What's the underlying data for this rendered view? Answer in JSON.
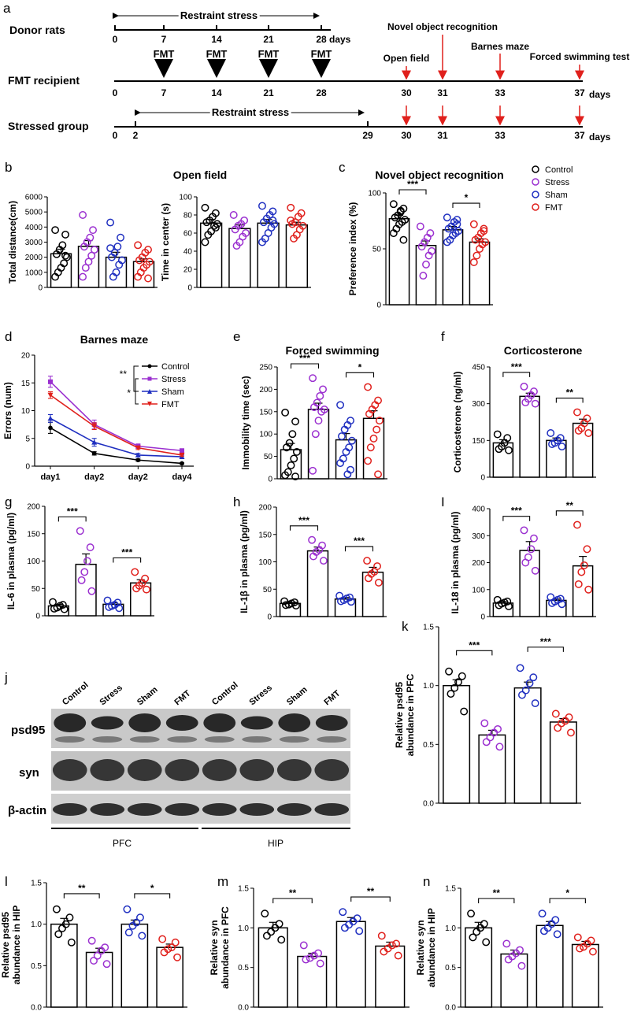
{
  "colors": {
    "control": "#000000",
    "stress": "#9b30d0",
    "sham": "#1f2fc0",
    "fmt": "#e0201c",
    "arrow_red": "#e0201c",
    "blot_bg": "#c9c9c9",
    "blot_band": "#1a1a1a"
  },
  "panel_a": {
    "letter": "a",
    "donor": {
      "label": "Donor rats",
      "ticks": [
        "0",
        "7",
        "14",
        "21",
        "28"
      ],
      "unit": "days",
      "stress_label": "Restraint stress"
    },
    "recipient": {
      "label": "FMT recipient",
      "fmt_labels": [
        "FMT",
        "FMT",
        "FMT",
        "FMT"
      ],
      "ticks": [
        "0",
        "7",
        "14",
        "21",
        "28",
        "30",
        "31",
        "33",
        "37"
      ],
      "unit": "days"
    },
    "stressed": {
      "label": "Stressed group",
      "stress_label": "Restraint stress",
      "ticks": [
        "0",
        "2",
        "29",
        "30",
        "31",
        "33",
        "37"
      ],
      "unit": "days"
    },
    "tests": [
      "Open field",
      "Novel object recognition",
      "Barnes maze",
      "Forced swimming test"
    ]
  },
  "legend": {
    "groups": [
      "Control",
      "Stress",
      "Sham",
      "FMT"
    ]
  },
  "barnes_legend": {
    "groups": [
      "Control",
      "Stress",
      "Sham",
      "FMT"
    ],
    "sig": [
      "**",
      "*"
    ]
  },
  "chart_data": [
    {
      "id": "b1",
      "letter": "b",
      "type": "bar",
      "title": "",
      "ylabel": "Total distance(cm)",
      "categories": [
        "Control",
        "Stress",
        "Sham",
        "FMT"
      ],
      "values": [
        2230,
        2720,
        2000,
        1710
      ],
      "sem": [
        300,
        380,
        330,
        180
      ],
      "ylim": [
        0,
        6000
      ],
      "yticks": [
        0,
        1000,
        2000,
        3000,
        4000,
        5000,
        6000
      ],
      "sig": [],
      "points": [
        [
          3800,
          3500,
          2800,
          2500,
          2200,
          2000,
          1600,
          1300,
          1000,
          700,
          2100
        ],
        [
          4800,
          3800,
          3300,
          3000,
          2700,
          2500,
          2100,
          1700,
          1300,
          700
        ],
        [
          4300,
          3300,
          2700,
          2300,
          2000,
          1800,
          1500,
          1000,
          700,
          2600
        ],
        [
          2800,
          2500,
          2300,
          2000,
          1800,
          1700,
          1500,
          1300,
          1000,
          700,
          600
        ]
      ]
    },
    {
      "id": "b2",
      "letter": "",
      "type": "bar",
      "title": "",
      "ylabel": "Time in center (s)",
      "categories": [
        "Control",
        "Stress",
        "Sham",
        "FMT"
      ],
      "values": [
        71,
        65,
        71,
        69
      ],
      "sem": [
        4,
        4,
        4,
        3
      ],
      "ylim": [
        0,
        100
      ],
      "yticks": [
        0,
        20,
        40,
        60,
        80,
        100
      ],
      "sig": [],
      "points": [
        [
          88,
          82,
          78,
          74,
          72,
          70,
          68,
          62,
          58,
          50,
          66
        ],
        [
          80,
          74,
          70,
          68,
          64,
          60,
          56,
          50,
          46
        ],
        [
          90,
          84,
          80,
          76,
          72,
          70,
          66,
          60,
          54,
          50,
          74
        ],
        [
          88,
          82,
          78,
          72,
          70,
          68,
          64,
          58,
          54,
          74
        ]
      ]
    },
    {
      "id": "c",
      "letter": "c",
      "type": "bar",
      "title": "Novel object recognition",
      "ylabel": "Preference index (%)",
      "categories": [
        "Control",
        "Stress",
        "Sham",
        "FMT"
      ],
      "values": [
        77,
        53,
        67,
        56
      ],
      "sem": [
        3,
        4,
        3,
        3
      ],
      "ylim": [
        0,
        100
      ],
      "yticks": [
        0,
        50,
        100
      ],
      "sig": [
        [
          0,
          1,
          "***"
        ],
        [
          2,
          3,
          "*"
        ]
      ],
      "points": [
        [
          90,
          86,
          83,
          80,
          78,
          76,
          74,
          72,
          68,
          64,
          58,
          84
        ],
        [
          70,
          64,
          60,
          56,
          52,
          48,
          44,
          36,
          26
        ],
        [
          78,
          76,
          74,
          70,
          68,
          66,
          64,
          62,
          58,
          56,
          72
        ],
        [
          72,
          68,
          64,
          60,
          58,
          56,
          54,
          50,
          44,
          38,
          66
        ]
      ]
    },
    {
      "id": "d",
      "letter": "d",
      "type": "line",
      "title": "Barnes maze",
      "ylabel": "Errors (num)",
      "x": [
        "day1",
        "day2",
        "day2",
        "day4"
      ],
      "ylim": [
        0,
        20
      ],
      "yticks": [
        0,
        5,
        10,
        15,
        20
      ],
      "series": [
        {
          "name": "Control",
          "values": [
            6.9,
            2.3,
            1.1,
            0.5
          ],
          "sem": [
            1.0,
            0.3,
            0.2,
            0.1
          ]
        },
        {
          "name": "Stress",
          "values": [
            15.2,
            7.5,
            3.6,
            2.8
          ],
          "sem": [
            1.0,
            0.8,
            0.4,
            0.3
          ]
        },
        {
          "name": "Sham",
          "values": [
            8.6,
            4.3,
            2.0,
            1.7
          ],
          "sem": [
            0.7,
            0.7,
            0.3,
            0.3
          ]
        },
        {
          "name": "FMT",
          "values": [
            12.8,
            7.2,
            3.3,
            2.0
          ],
          "sem": [
            0.6,
            0.6,
            0.3,
            0.2
          ]
        }
      ]
    },
    {
      "id": "e",
      "letter": "e",
      "type": "bar",
      "title": "Forced swimming",
      "ylabel": "Immobility time (sec)",
      "categories": [
        "Control",
        "Stress",
        "Sham",
        "FMT"
      ],
      "values": [
        65,
        155,
        87,
        135
      ],
      "sem": [
        14,
        14,
        14,
        17
      ],
      "ylim": [
        0,
        250
      ],
      "yticks": [
        0,
        50,
        100,
        150,
        200,
        250
      ],
      "sig": [
        [
          0,
          1,
          "***"
        ],
        [
          2,
          3,
          "*"
        ]
      ],
      "points": [
        [
          148,
          128,
          100,
          80,
          70,
          60,
          45,
          30,
          15,
          8,
          5
        ],
        [
          225,
          200,
          185,
          170,
          160,
          155,
          150,
          130,
          100,
          18
        ],
        [
          165,
          130,
          120,
          110,
          95,
          85,
          70,
          60,
          45,
          35,
          20,
          10
        ],
        [
          205,
          175,
          165,
          155,
          145,
          130,
          110,
          90,
          70,
          40,
          10
        ]
      ]
    },
    {
      "id": "f",
      "letter": "f",
      "type": "bar",
      "title": "Corticosterone",
      "ylabel": "Corticosterone (ng/ml)",
      "categories": [
        "Control",
        "Stress",
        "Sham",
        "FMT"
      ],
      "values": [
        140,
        330,
        150,
        220
      ],
      "sem": [
        13,
        13,
        10,
        17
      ],
      "ylim": [
        0,
        450
      ],
      "yticks": [
        0,
        150,
        300,
        450
      ],
      "sig": [
        [
          0,
          1,
          "***"
        ],
        [
          2,
          3,
          "**"
        ]
      ],
      "points": [
        [
          175,
          160,
          140,
          125,
          115,
          110
        ],
        [
          370,
          350,
          335,
          320,
          305,
          300
        ],
        [
          180,
          160,
          150,
          140,
          135,
          125
        ],
        [
          265,
          240,
          220,
          200,
          190,
          180
        ]
      ]
    },
    {
      "id": "g",
      "letter": "g",
      "type": "bar",
      "title": "",
      "ylabel": "IL-6 in plasma (pg/ml)",
      "categories": [
        "Control",
        "Stress",
        "Sham",
        "FMT"
      ],
      "values": [
        18,
        94,
        21,
        60
      ],
      "sem": [
        3,
        19,
        3,
        6
      ],
      "ylim": [
        0,
        200
      ],
      "yticks": [
        0,
        50,
        100,
        150,
        200
      ],
      "sig": [
        [
          0,
          1,
          "***"
        ],
        [
          2,
          3,
          "***"
        ]
      ],
      "points": [
        [
          25,
          20,
          18,
          15,
          13,
          12
        ],
        [
          155,
          125,
          100,
          80,
          65,
          45
        ],
        [
          28,
          24,
          20,
          18,
          16,
          14
        ],
        [
          80,
          68,
          60,
          55,
          50,
          48
        ]
      ]
    },
    {
      "id": "h",
      "letter": "h",
      "type": "bar",
      "title": "",
      "ylabel": "IL-1β in plasma (pg/ml)",
      "categories": [
        "Control",
        "Stress",
        "Sham",
        "FMT"
      ],
      "values": [
        24,
        120,
        32,
        81
      ],
      "sem": [
        2,
        7,
        3,
        9
      ],
      "ylim": [
        0,
        200
      ],
      "yticks": [
        0,
        50,
        100,
        150,
        200
      ],
      "sig": [
        [
          0,
          1,
          "***"
        ],
        [
          2,
          3,
          "***"
        ]
      ],
      "points": [
        [
          28,
          26,
          24,
          22,
          21,
          20
        ],
        [
          140,
          130,
          122,
          118,
          110,
          102
        ],
        [
          38,
          35,
          33,
          30,
          28,
          27
        ],
        [
          102,
          92,
          82,
          78,
          70,
          62
        ]
      ]
    },
    {
      "id": "i",
      "letter": "I",
      "type": "bar",
      "title": "",
      "ylabel": "IL-18 in plasma (pg/ml)",
      "categories": [
        "Control",
        "Stress",
        "Sham",
        "FMT"
      ],
      "values": [
        50,
        245,
        60,
        188
      ],
      "sem": [
        6,
        33,
        5,
        35
      ],
      "ylim": [
        0,
        400
      ],
      "yticks": [
        0,
        100,
        200,
        300,
        400
      ],
      "sig": [
        [
          0,
          1,
          "***"
        ],
        [
          2,
          3,
          "**"
        ]
      ],
      "points": [
        [
          62,
          56,
          52,
          48,
          42,
          38
        ],
        [
          320,
          290,
          250,
          220,
          200,
          170
        ],
        [
          72,
          66,
          62,
          56,
          50,
          46
        ],
        [
          340,
          250,
          190,
          165,
          120,
          100
        ]
      ]
    },
    {
      "id": "k",
      "letter": "k",
      "type": "bar",
      "title": "",
      "ylabel": "Relative psd95\nabundance in PFC",
      "categories": [
        "Control",
        "Stress",
        "Sham",
        "FMT"
      ],
      "values": [
        1.0,
        0.58,
        0.98,
        0.69
      ],
      "sem": [
        0.05,
        0.04,
        0.05,
        0.03
      ],
      "ylim": [
        0,
        1.5
      ],
      "yticks": [
        0.0,
        0.5,
        1.0,
        1.5
      ],
      "sig": [
        [
          0,
          1,
          "***"
        ],
        [
          2,
          3,
          "***"
        ]
      ],
      "points": [
        [
          1.12,
          1.08,
          1.03,
          0.98,
          0.93,
          0.78
        ],
        [
          0.68,
          0.63,
          0.6,
          0.56,
          0.52,
          0.48
        ],
        [
          1.15,
          1.07,
          1.02,
          0.96,
          0.92,
          0.85
        ],
        [
          0.76,
          0.73,
          0.7,
          0.68,
          0.64,
          0.6
        ]
      ]
    },
    {
      "id": "l",
      "letter": "l",
      "type": "bar",
      "title": "",
      "ylabel": "Relative psd95\nabundance in HIP",
      "categories": [
        "Control",
        "Stress",
        "Sham",
        "FMT"
      ],
      "values": [
        1.0,
        0.66,
        1.0,
        0.72
      ],
      "sem": [
        0.07,
        0.05,
        0.05,
        0.04
      ],
      "ylim": [
        0,
        1.5
      ],
      "yticks": [
        0.0,
        0.5,
        1.0,
        1.5
      ],
      "sig": [
        [
          0,
          1,
          "**"
        ],
        [
          2,
          3,
          "*"
        ]
      ],
      "points": [
        [
          1.18,
          1.08,
          1.0,
          0.95,
          0.88,
          0.78
        ],
        [
          0.8,
          0.72,
          0.68,
          0.62,
          0.56,
          0.52
        ],
        [
          1.18,
          1.08,
          1.02,
          0.98,
          0.9,
          0.86
        ],
        [
          0.82,
          0.78,
          0.72,
          0.7,
          0.66,
          0.6
        ]
      ]
    },
    {
      "id": "m",
      "letter": "m",
      "type": "bar",
      "title": "",
      "ylabel": "Relative syn\nabundance in PFC",
      "categories": [
        "Control",
        "Stress",
        "Sham",
        "FMT"
      ],
      "values": [
        1.0,
        0.64,
        1.08,
        0.77
      ],
      "sem": [
        0.07,
        0.04,
        0.05,
        0.05
      ],
      "ylim": [
        0,
        1.5
      ],
      "yticks": [
        0.0,
        0.5,
        1.0,
        1.5
      ],
      "sig": [
        [
          0,
          1,
          "**"
        ],
        [
          2,
          3,
          "**"
        ]
      ],
      "points": [
        [
          1.18,
          1.05,
          1.0,
          0.95,
          0.9,
          0.85
        ],
        [
          0.78,
          0.68,
          0.65,
          0.62,
          0.6,
          0.55
        ],
        [
          1.2,
          1.12,
          1.08,
          1.04,
          1.0,
          0.96
        ],
        [
          0.9,
          0.8,
          0.78,
          0.74,
          0.7,
          0.65
        ]
      ]
    },
    {
      "id": "n",
      "letter": "n",
      "type": "bar",
      "title": "",
      "ylabel": "Relative syn\nabundance in HIP",
      "categories": [
        "Control",
        "Stress",
        "Sham",
        "FMT"
      ],
      "values": [
        1.0,
        0.67,
        1.03,
        0.79
      ],
      "sem": [
        0.07,
        0.05,
        0.05,
        0.04
      ],
      "ylim": [
        0,
        1.5
      ],
      "yticks": [
        0.0,
        0.5,
        1.0,
        1.5
      ],
      "sig": [
        [
          0,
          1,
          "**"
        ],
        [
          2,
          3,
          "*"
        ]
      ],
      "points": [
        [
          1.18,
          1.05,
          1.0,
          0.95,
          0.88,
          0.82
        ],
        [
          0.8,
          0.72,
          0.68,
          0.64,
          0.6,
          0.52
        ],
        [
          1.18,
          1.1,
          1.05,
          1.0,
          0.96,
          0.92
        ],
        [
          0.88,
          0.84,
          0.8,
          0.76,
          0.74,
          0.7
        ]
      ]
    }
  ],
  "panel_b_title": "Open field",
  "blot": {
    "letter": "j",
    "lanes": [
      "Control",
      "Stress",
      "Sham",
      "FMT",
      "Control",
      "Stress",
      "Sham",
      "FMT"
    ],
    "rows": [
      "psd95",
      "syn",
      "β-actin"
    ],
    "regions": [
      "PFC",
      "HIP"
    ]
  }
}
